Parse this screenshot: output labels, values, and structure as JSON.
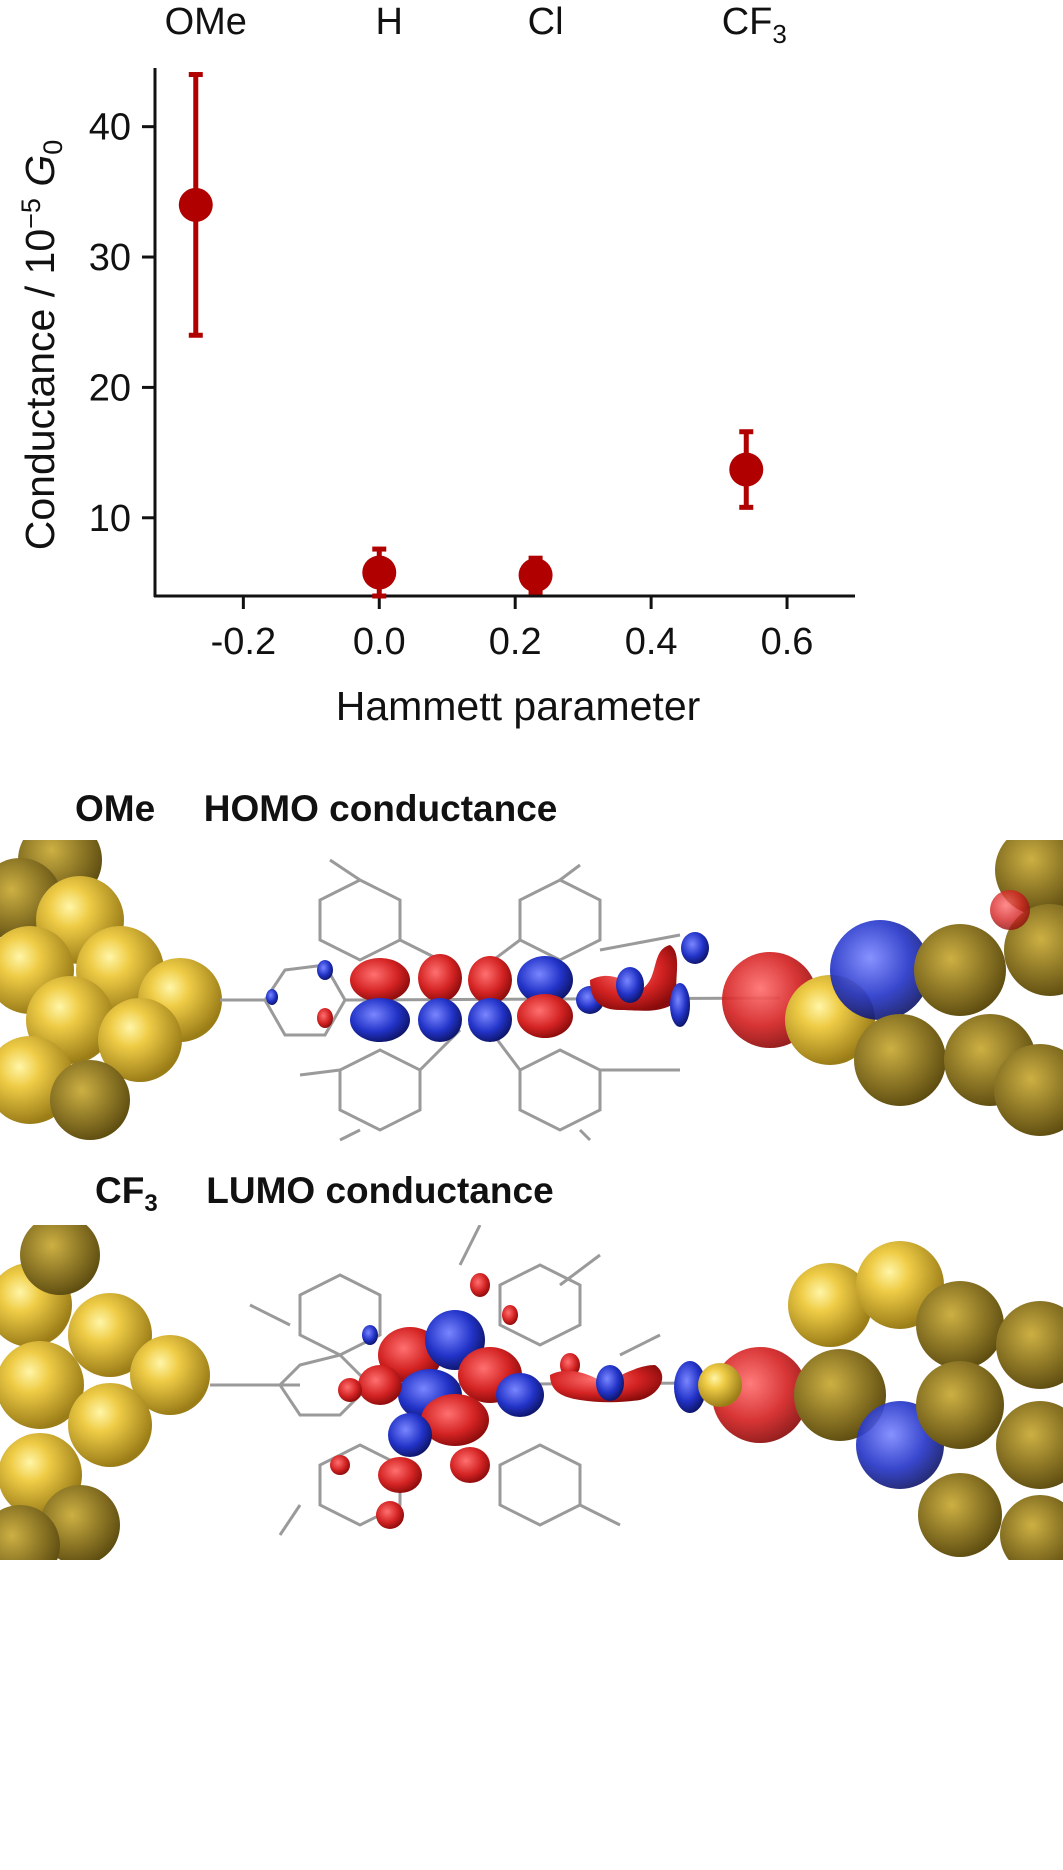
{
  "chart_data": {
    "type": "scatter",
    "xlabel": "Hammett parameter",
    "ylabel": "Conductance / 10",
    "ylabel_exp": "−5",
    "ylabel_unit": "G",
    "ylabel_unit_sub": "0",
    "xlim": [
      -0.33,
      0.7
    ],
    "ylim": [
      4.0,
      44.5
    ],
    "xticks": [
      -0.2,
      0.0,
      0.2,
      0.4,
      0.6
    ],
    "xtick_labels": [
      "-0.2",
      "0.0",
      "0.2",
      "0.4",
      "0.6"
    ],
    "yticks": [
      10,
      20,
      30,
      40
    ],
    "ytick_labels": [
      "10",
      "20",
      "30",
      "40"
    ],
    "grid": false,
    "color": "#b00000",
    "points": [
      {
        "label": "OMe",
        "x": -0.27,
        "y": 34.0,
        "err_low": 24.0,
        "err_high": 44.0
      },
      {
        "label": "H",
        "x": 0.0,
        "y": 5.8,
        "err_low": 4.0,
        "err_high": 7.6
      },
      {
        "label": "Cl",
        "x": 0.23,
        "y": 5.6,
        "err_low": 4.3,
        "err_high": 6.9
      },
      {
        "label": "CF",
        "label_sub": "3",
        "x": 0.54,
        "y": 13.7,
        "err_low": 10.8,
        "err_high": 16.6
      }
    ]
  },
  "panels": {
    "homo": {
      "label": "OMe",
      "title": "HOMO conductance"
    },
    "lumo": {
      "label": "CF",
      "label_sub": "3",
      "title": "LUMO conductance"
    }
  },
  "colors": {
    "gold": "#e9c23c",
    "red_orbital": "#d42323",
    "blue_orbital": "#2233c8"
  }
}
